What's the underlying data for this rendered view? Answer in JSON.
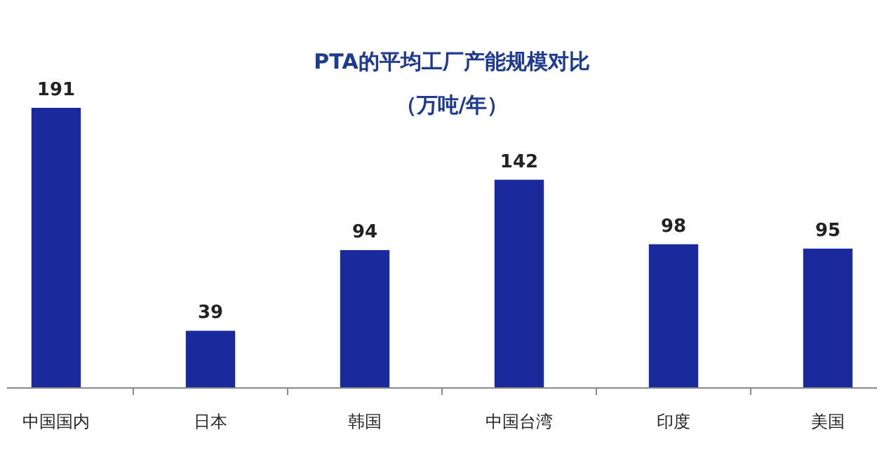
{
  "chart_data": {
    "type": "bar",
    "title": "PTA的平均工厂产能规模对比",
    "subtitle": "（万吨/年）",
    "categories": [
      "中国国内",
      "日本",
      "韩国",
      "中国台湾",
      "印度",
      "美国"
    ],
    "values": [
      191,
      39,
      94,
      142,
      98,
      95
    ],
    "color": "#1a2a9c",
    "data_labels": true
  }
}
